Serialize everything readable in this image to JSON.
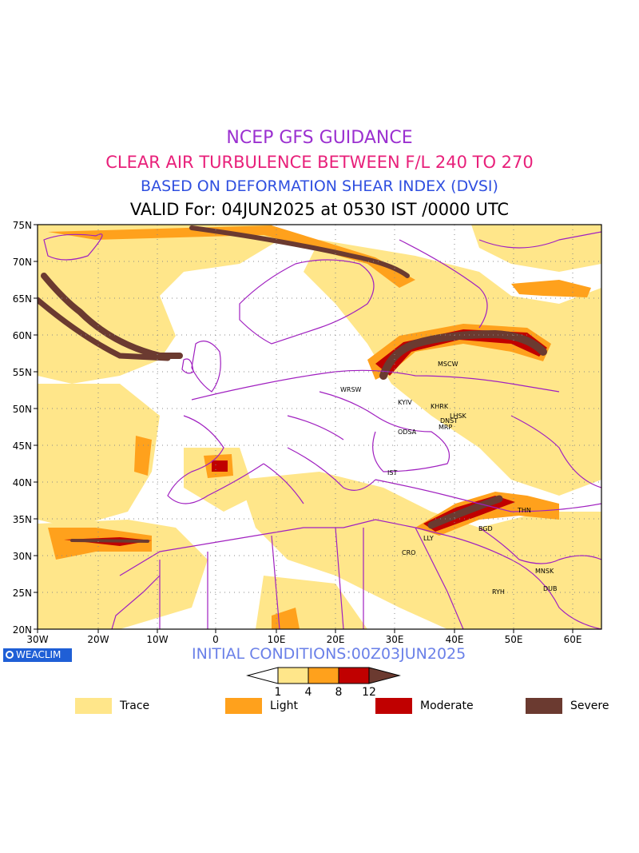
{
  "title": {
    "line1": "NCEP GFS GUIDANCE",
    "line2": "CLEAR AIR TURBULENCE BETWEEN F/L 240 TO 270",
    "line3": "BASED ON DEFORMATION SHEAR INDEX (DVSI)",
    "line4": "VALID For: 04JUN2025 at 0530 IST /0000 UTC"
  },
  "map": {
    "lat_labels": [
      "75N",
      "70N",
      "65N",
      "60N",
      "55N",
      "50N",
      "45N",
      "40N",
      "35N",
      "30N",
      "25N",
      "20N"
    ],
    "lon_labels": [
      "30W",
      "20W",
      "10W",
      "0",
      "10E",
      "20E",
      "30E",
      "40E",
      "50E",
      "60E"
    ],
    "stations": [
      {
        "code": "MSCW"
      },
      {
        "code": "WRSW"
      },
      {
        "code": "KYIV"
      },
      {
        "code": "KHRK"
      },
      {
        "code": "DNST"
      },
      {
        "code": "LHSK"
      },
      {
        "code": "MRP"
      },
      {
        "code": "ODSA"
      },
      {
        "code": "IST"
      },
      {
        "code": "THN"
      },
      {
        "code": "BGD"
      },
      {
        "code": "LLY"
      },
      {
        "code": "CRO"
      },
      {
        "code": "MNSK"
      },
      {
        "code": "RYH"
      },
      {
        "code": "DUB"
      }
    ],
    "colors": {
      "trace": "#ffe68a",
      "light": "#ffa11c",
      "moderate": "#c00000",
      "severe": "#6b3a30",
      "borders": "#a020c0",
      "frame": "#000000"
    }
  },
  "logo": {
    "label": "WEACLIM",
    "icon": "weaclim-logo-icon"
  },
  "initial_conditions": "INITIAL CONDITIONS:00Z03JUN2025",
  "colorbar": {
    "ticks": [
      "1",
      "4",
      "8",
      "12"
    ]
  },
  "legend": [
    {
      "label": "Trace",
      "color": "#ffe68a"
    },
    {
      "label": "Light",
      "color": "#ffa11c"
    },
    {
      "label": "Moderate",
      "color": "#c00000"
    },
    {
      "label": "Severe",
      "color": "#6b3a30"
    }
  ]
}
